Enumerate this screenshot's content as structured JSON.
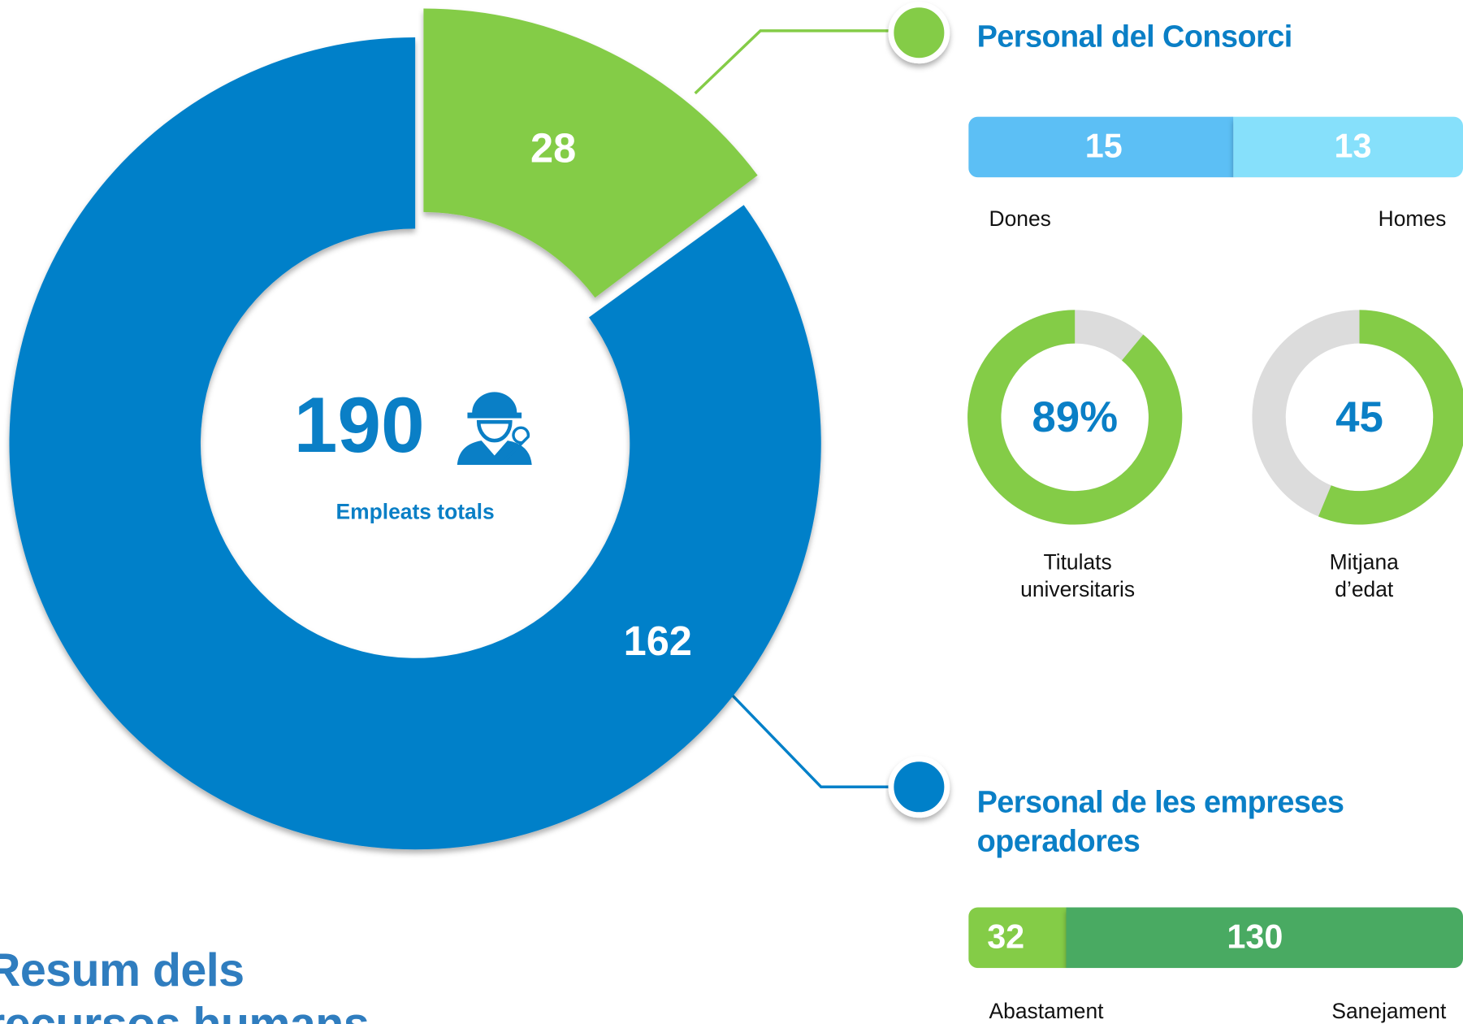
{
  "title": "Resum dels recursos humans",
  "total": {
    "value": 190,
    "label": "Empleats totals"
  },
  "donut": {
    "segments": [
      {
        "value": 28,
        "color": "#84cc47"
      },
      {
        "value": 162,
        "color": "#0080c9"
      }
    ]
  },
  "consorci": {
    "title": "Personal del Consorci",
    "gender": [
      {
        "name": "Dones",
        "value": 15,
        "color": "#5bbff5"
      },
      {
        "name": "Homes",
        "value": 13,
        "color": "#86e0fb"
      }
    ],
    "graduates": {
      "value": 89,
      "value_label": "89%",
      "range": [
        0,
        100
      ],
      "name": "Titulats universitaris",
      "color": "#84cc47"
    },
    "age": {
      "value": 45,
      "range": [
        0,
        80
      ],
      "name": "Mitjana d’edat",
      "color": "#84cc47"
    }
  },
  "empreses": {
    "title": "Personal de les empreses operadores",
    "split": [
      {
        "name": "Abastament",
        "value": 32,
        "color": "#84cc47"
      },
      {
        "name": "Sanejament",
        "value": 130,
        "color": "#4aaa62"
      }
    ]
  }
}
